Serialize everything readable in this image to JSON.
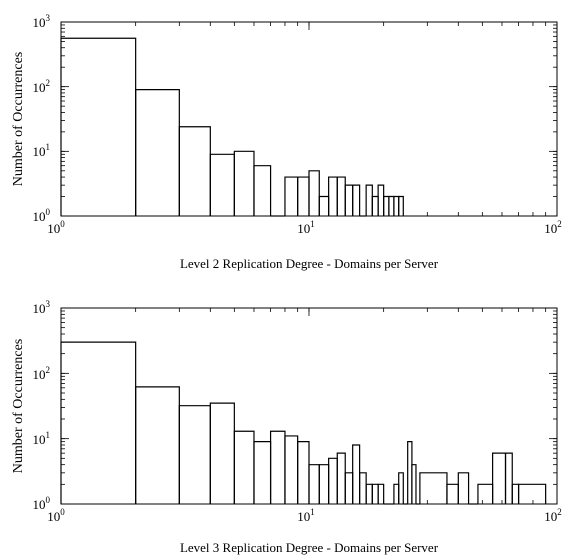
{
  "chart_data": [
    {
      "type": "histogram",
      "xscale": "log",
      "yscale": "log",
      "xlim": [
        1,
        100
      ],
      "ylim": [
        1,
        1000
      ],
      "xlabel": "Level 2 Replication Degree - Domains per Server",
      "ylabel": "Number of Occurrences",
      "x_ticks": [
        {
          "base": "10",
          "exp": "0"
        },
        {
          "base": "10",
          "exp": "1"
        },
        {
          "base": "10",
          "exp": "2"
        }
      ],
      "y_ticks": [
        {
          "base": "10",
          "exp": "0"
        },
        {
          "base": "10",
          "exp": "1"
        },
        {
          "base": "10",
          "exp": "2"
        },
        {
          "base": "10",
          "exp": "3"
        }
      ],
      "grid": false,
      "bins": [
        {
          "x0": 1,
          "x1": 2,
          "y": 560
        },
        {
          "x0": 2,
          "x1": 3,
          "y": 90
        },
        {
          "x0": 3,
          "x1": 4,
          "y": 24
        },
        {
          "x0": 4,
          "x1": 5,
          "y": 9
        },
        {
          "x0": 5,
          "x1": 6,
          "y": 10
        },
        {
          "x0": 6,
          "x1": 7,
          "y": 6
        },
        {
          "x0": 7,
          "x1": 8,
          "y": 1
        },
        {
          "x0": 8,
          "x1": 9,
          "y": 4
        },
        {
          "x0": 9,
          "x1": 10,
          "y": 4
        },
        {
          "x0": 10,
          "x1": 11,
          "y": 5
        },
        {
          "x0": 11,
          "x1": 12,
          "y": 2
        },
        {
          "x0": 12,
          "x1": 13,
          "y": 4
        },
        {
          "x0": 13,
          "x1": 14,
          "y": 4
        },
        {
          "x0": 14,
          "x1": 15,
          "y": 3
        },
        {
          "x0": 15,
          "x1": 16,
          "y": 3
        },
        {
          "x0": 16,
          "x1": 17,
          "y": 1
        },
        {
          "x0": 17,
          "x1": 18,
          "y": 3
        },
        {
          "x0": 18,
          "x1": 19,
          "y": 2
        },
        {
          "x0": 19,
          "x1": 20,
          "y": 3
        },
        {
          "x0": 20,
          "x1": 21,
          "y": 2
        },
        {
          "x0": 21,
          "x1": 22,
          "y": 2
        },
        {
          "x0": 22,
          "x1": 23,
          "y": 2
        },
        {
          "x0": 23,
          "x1": 24,
          "y": 2
        }
      ]
    },
    {
      "type": "histogram",
      "xscale": "log",
      "yscale": "log",
      "xlim": [
        1,
        100
      ],
      "ylim": [
        1,
        1000
      ],
      "xlabel": "Level 3 Replication Degree - Domains per Server",
      "ylabel": "Number of Occurrences",
      "x_ticks": [
        {
          "base": "10",
          "exp": "0"
        },
        {
          "base": "10",
          "exp": "1"
        },
        {
          "base": "10",
          "exp": "2"
        }
      ],
      "y_ticks": [
        {
          "base": "10",
          "exp": "0"
        },
        {
          "base": "10",
          "exp": "1"
        },
        {
          "base": "10",
          "exp": "2"
        },
        {
          "base": "10",
          "exp": "3"
        }
      ],
      "grid": false,
      "bins": [
        {
          "x0": 1,
          "x1": 2,
          "y": 300
        },
        {
          "x0": 2,
          "x1": 3,
          "y": 62
        },
        {
          "x0": 3,
          "x1": 4,
          "y": 32
        },
        {
          "x0": 4,
          "x1": 5,
          "y": 35
        },
        {
          "x0": 5,
          "x1": 6,
          "y": 13
        },
        {
          "x0": 6,
          "x1": 7,
          "y": 9
        },
        {
          "x0": 7,
          "x1": 8,
          "y": 13
        },
        {
          "x0": 8,
          "x1": 9,
          "y": 11
        },
        {
          "x0": 9,
          "x1": 10,
          "y": 9
        },
        {
          "x0": 10,
          "x1": 11,
          "y": 4
        },
        {
          "x0": 11,
          "x1": 12,
          "y": 4
        },
        {
          "x0": 12,
          "x1": 13,
          "y": 5
        },
        {
          "x0": 13,
          "x1": 14,
          "y": 6
        },
        {
          "x0": 14,
          "x1": 15,
          "y": 3
        },
        {
          "x0": 15,
          "x1": 16,
          "y": 8
        },
        {
          "x0": 16,
          "x1": 17,
          "y": 3
        },
        {
          "x0": 17,
          "x1": 18,
          "y": 2
        },
        {
          "x0": 18,
          "x1": 19,
          "y": 2
        },
        {
          "x0": 19,
          "x1": 20,
          "y": 2
        },
        {
          "x0": 20,
          "x1": 21,
          "y": 1
        },
        {
          "x0": 21,
          "x1": 22,
          "y": 1
        },
        {
          "x0": 22,
          "x1": 23,
          "y": 2
        },
        {
          "x0": 23,
          "x1": 24,
          "y": 3
        },
        {
          "x0": 24,
          "x1": 25,
          "y": 1
        },
        {
          "x0": 25,
          "x1": 26,
          "y": 9
        },
        {
          "x0": 26,
          "x1": 27,
          "y": 4
        },
        {
          "x0": 27,
          "x1": 28,
          "y": 1
        },
        {
          "x0": 28,
          "x1": 36,
          "y": 3
        },
        {
          "x0": 36,
          "x1": 40,
          "y": 2
        },
        {
          "x0": 40,
          "x1": 44,
          "y": 3
        },
        {
          "x0": 44,
          "x1": 48,
          "y": 1
        },
        {
          "x0": 48,
          "x1": 55,
          "y": 2
        },
        {
          "x0": 55,
          "x1": 62,
          "y": 6
        },
        {
          "x0": 62,
          "x1": 66,
          "y": 6
        },
        {
          "x0": 66,
          "x1": 70,
          "y": 2
        },
        {
          "x0": 70,
          "x1": 90,
          "y": 2
        }
      ]
    }
  ]
}
